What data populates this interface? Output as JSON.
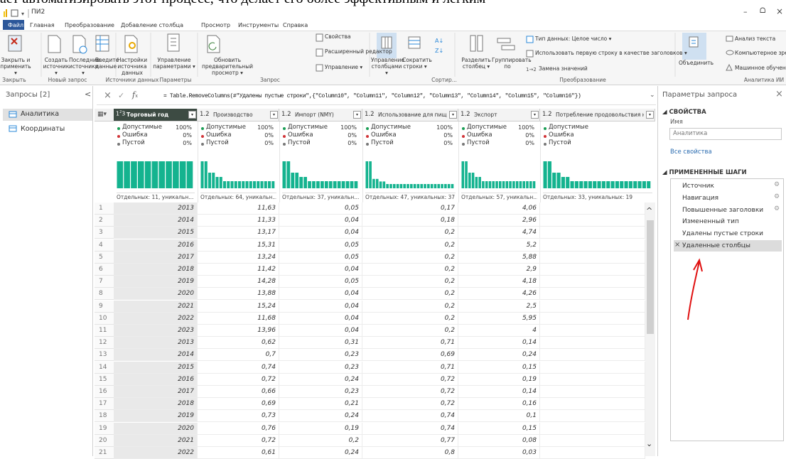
{
  "page_top_text": "ает автоматизировать этот процесс, что делает его более эффективным и легким",
  "window": {
    "title": "ПИ2",
    "controls": [
      "–",
      "ᗝ",
      "×"
    ]
  },
  "tabs": [
    "Файл",
    "Главная",
    "Преобразование",
    "Добавление столбца",
    "Просмотр",
    "Инструменты",
    "Справка"
  ],
  "ribbon": {
    "buttons": [
      "Закрыть и применить ▾",
      "Создать источник ▾",
      "Последние источники ▾",
      "Введите данные",
      "Настройки источника данных",
      "Управление параметрами ▾",
      "Обновить предварительный просмотр ▾",
      "Управление столбцами ▾",
      "Сократить строки ▾",
      "Разделить столбец ▾",
      "Группировать по",
      "Объединить"
    ],
    "small_buttons": [
      "Свойства",
      "Расширенный редактор",
      "Управление ▾",
      "Тип данных: Целое число ▾",
      "Использовать первую строку в качестве заголовков ▾",
      "Замена значений",
      "Анализ текста",
      "Компьютерное зрение",
      "Машинное обучение Azu"
    ],
    "groups": [
      "Закрыть",
      "Новый запрос",
      "Источники данных",
      "Параметры",
      "Запрос",
      "Сортир...",
      "Преобразование",
      "Аналитика ИИ"
    ]
  },
  "queries": {
    "title": "Запросы [2]",
    "items": [
      "Аналитика",
      "Координаты"
    ]
  },
  "formula": "= Table.RemoveColumns(#\"Удалены пустые строки\",{\"Column10\", \"Column11\", \"Column12\", \"Column13\", \"Column14\", \"Column15\", \"Column16\"})",
  "table": {
    "profile_labels": [
      "Допустимые",
      "Ошибка",
      "Пустой"
    ],
    "columns": [
      {
        "name": "Торговый год",
        "percents": [
          "100%",
          "0%",
          "0%"
        ],
        "distinct": "Отдельных: 11, уникальн..."
      },
      {
        "type": "1.2",
        "name": "Производство",
        "percents": [
          "100%",
          "0%",
          "0%"
        ],
        "distinct": "Отдельных: 64, уникальн..."
      },
      {
        "type": "1.2",
        "name": "Импорт (NMY)",
        "percents": [
          "100%",
          "0%",
          "0%"
        ],
        "distinct": "Отдельных: 37, уникальн..."
      },
      {
        "type": "1.2",
        "name": "Использование для пищи",
        "percents": [
          "100%",
          "0%",
          "0%"
        ],
        "distinct": "Отдельных: 47, уникальных: 37"
      },
      {
        "type": "1.2",
        "name": "Экспорт",
        "percents": [
          "100%",
          "0%",
          "0%"
        ],
        "distinct": "Отдельных: 57, уникальн..."
      },
      {
        "type": "1.2",
        "name": "Потребление продовольствия на душ",
        "distinct": "Отдельных: 33, уникальных: 19"
      }
    ],
    "rows": [
      [
        "1",
        "2013",
        "11,63",
        "0,05",
        "0,17",
        "4,06"
      ],
      [
        "2",
        "2014",
        "11,33",
        "0,04",
        "0,18",
        "2,96"
      ],
      [
        "3",
        "2015",
        "13,17",
        "0,04",
        "0,2",
        "4,74"
      ],
      [
        "4",
        "2016",
        "15,31",
        "0,05",
        "0,2",
        "5,2"
      ],
      [
        "5",
        "2017",
        "13,24",
        "0,05",
        "0,2",
        "5,88"
      ],
      [
        "6",
        "2018",
        "11,42",
        "0,04",
        "0,2",
        "2,9"
      ],
      [
        "7",
        "2019",
        "14,28",
        "0,05",
        "0,2",
        "4,18"
      ],
      [
        "8",
        "2020",
        "13,88",
        "0,04",
        "0,2",
        "4,26"
      ],
      [
        "9",
        "2021",
        "15,24",
        "0,04",
        "0,2",
        "2,5"
      ],
      [
        "10",
        "2022",
        "11,68",
        "0,04",
        "0,2",
        "5,95"
      ],
      [
        "11",
        "2023",
        "13,96",
        "0,04",
        "0,2",
        "4"
      ],
      [
        "12",
        "2013",
        "0,62",
        "0,31",
        "0,71",
        "0,14"
      ],
      [
        "13",
        "2014",
        "0,7",
        "0,23",
        "0,69",
        "0,24"
      ],
      [
        "14",
        "2015",
        "0,74",
        "0,23",
        "0,71",
        "0,15"
      ],
      [
        "15",
        "2016",
        "0,72",
        "0,24",
        "0,72",
        "0,19"
      ],
      [
        "16",
        "2017",
        "0,66",
        "0,23",
        "0,72",
        "0,14"
      ],
      [
        "17",
        "2018",
        "0,69",
        "0,21",
        "0,72",
        "0,16"
      ],
      [
        "18",
        "2019",
        "0,73",
        "0,24",
        "0,74",
        "0,1"
      ],
      [
        "19",
        "2020",
        "0,76",
        "0,19",
        "0,74",
        "0,15"
      ],
      [
        "20",
        "2021",
        "0,72",
        "0,2",
        "0,77",
        "0,08"
      ],
      [
        "21",
        "2022",
        "0,61",
        "0,24",
        "0,8",
        "0,03"
      ]
    ]
  },
  "settings": {
    "title": "Параметры запроса",
    "properties": "СВОЙСТВА",
    "name_label": "Имя",
    "name_value": "Аналитика",
    "all_properties": "Все свойства",
    "steps_title": "ПРИМЕНЕННЫЕ ШАГИ",
    "steps": [
      "Источник",
      "Навигация",
      "Повышенные заголовки",
      "Измененный тип",
      "Удалены пустые строки",
      "Удаленные столбцы"
    ]
  }
}
